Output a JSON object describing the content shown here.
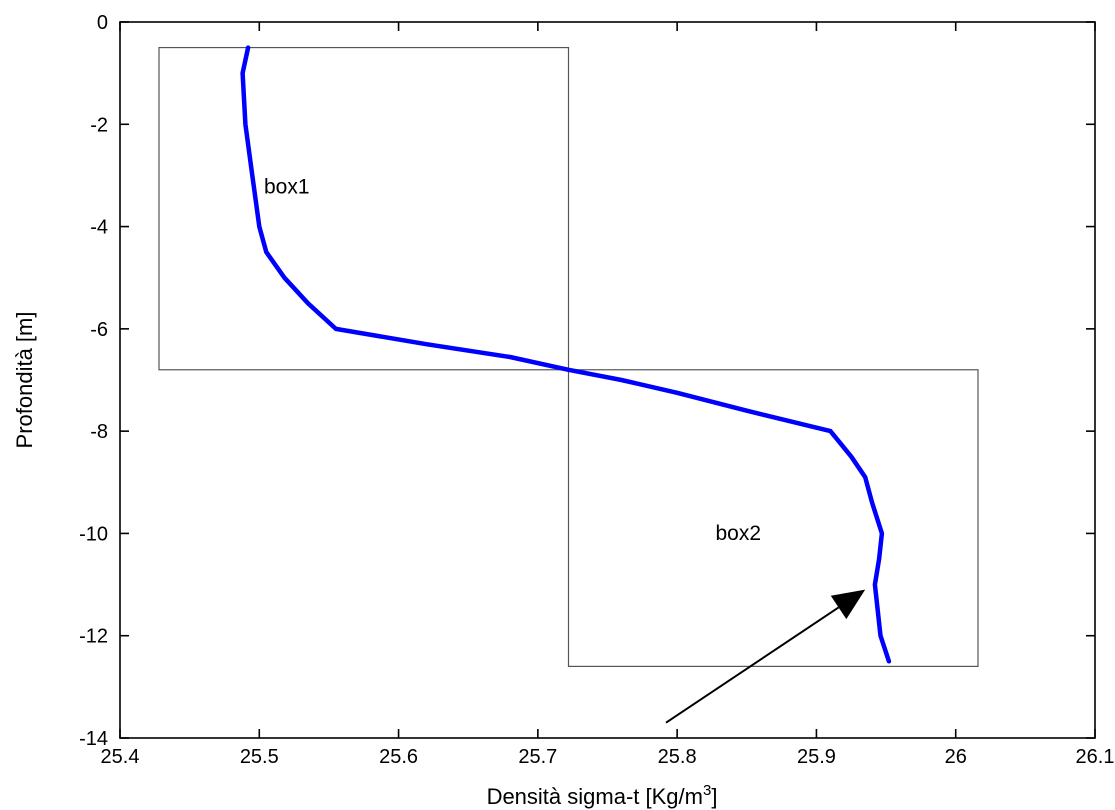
{
  "chart_data": {
    "type": "line",
    "xlabel": "Densità sigma-t [Kg/m",
    "xlabel_sup": "3",
    "xlabel_suffix": "]",
    "ylabel": "Profondità [m]",
    "xlim": [
      25.4,
      26.1
    ],
    "ylim": [
      -14,
      0
    ],
    "xticks": [
      25.4,
      25.5,
      25.6,
      25.7,
      25.8,
      25.9,
      26,
      26.1
    ],
    "xtick_labels": [
      "25.4",
      "25.5",
      "25.6",
      "25.7",
      "25.8",
      "25.9",
      "26",
      "26.1"
    ],
    "yticks": [
      0,
      -2,
      -4,
      -6,
      -8,
      -10,
      -12,
      -14
    ],
    "ytick_labels": [
      "0",
      "-2",
      "-4",
      "-6",
      "-8",
      "-10",
      "-12",
      "-14"
    ],
    "grid": false,
    "series": [
      {
        "color": "#0000ff",
        "x": [
          25.492,
          25.488,
          25.49,
          25.495,
          25.5,
          25.505,
          25.518,
          25.535,
          25.555,
          25.62,
          25.68,
          25.722,
          25.76,
          25.8,
          25.85,
          25.91,
          25.925,
          25.935,
          25.94,
          25.947,
          25.945,
          25.942,
          25.944,
          25.946,
          25.952
        ],
        "y": [
          -0.5,
          -1.0,
          -2.0,
          -3.0,
          -4.0,
          -4.5,
          -5.0,
          -5.5,
          -6.0,
          -6.3,
          -6.55,
          -6.8,
          -7.0,
          -7.25,
          -7.6,
          -8.0,
          -8.5,
          -8.9,
          -9.4,
          -10.0,
          -10.5,
          -11.0,
          -11.5,
          -12.0,
          -12.5
        ]
      }
    ],
    "boxes": [
      {
        "label": "box1",
        "x": [
          25.428,
          25.722
        ],
        "y": [
          -6.8,
          -0.5
        ]
      },
      {
        "label": "box2",
        "x": [
          25.722,
          26.016
        ],
        "y": [
          -12.6,
          -6.8
        ]
      }
    ],
    "arrow": {
      "from": [
        25.792,
        -13.7
      ],
      "to": [
        25.935,
        -11.1
      ]
    }
  }
}
